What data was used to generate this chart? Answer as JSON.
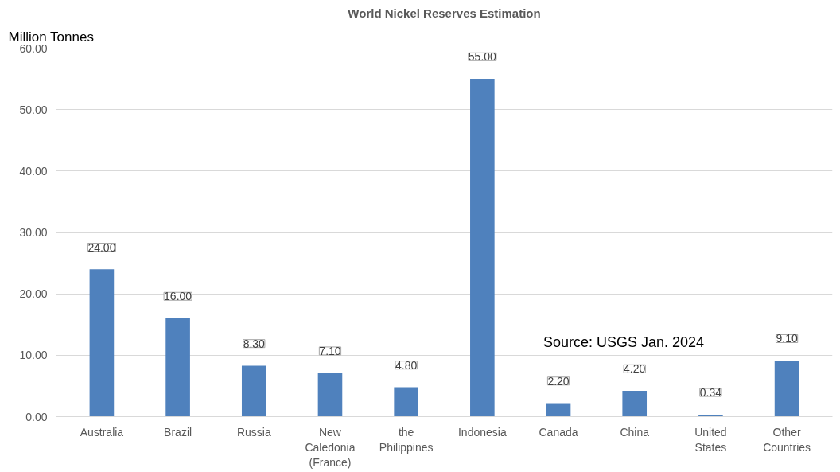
{
  "chart_data": {
    "type": "bar",
    "title": "World Nickel Reserves Estimation",
    "ylabel": "Million Tonnes",
    "categories": [
      "Australia",
      "Brazil",
      "Russia",
      "New Caledonia (France)",
      "the Philippines",
      "Indonesia",
      "Canada",
      "China",
      "United States",
      "Other Countries"
    ],
    "values": [
      24.0,
      16.0,
      8.3,
      7.1,
      4.8,
      55.0,
      2.2,
      4.2,
      0.34,
      9.1
    ],
    "value_labels": [
      "24.00",
      "16.00",
      "8.30",
      "7.10",
      "4.80",
      "55.00",
      "2.20",
      "4.20",
      "0.34",
      "9.10"
    ],
    "color": "#4f81bd",
    "ylim": [
      0,
      60
    ],
    "yticks": [
      {
        "value": 0,
        "label": "0.00"
      },
      {
        "value": 10,
        "label": "10.00"
      },
      {
        "value": 20,
        "label": "20.00"
      },
      {
        "value": 30,
        "label": "30.00"
      },
      {
        "value": 40,
        "label": "40.00"
      },
      {
        "value": 50,
        "label": "50.00"
      },
      {
        "value": 60,
        "label": "60.00"
      }
    ],
    "grid": "y",
    "annotations": [
      "Source: USGS Jan. 2024"
    ]
  }
}
